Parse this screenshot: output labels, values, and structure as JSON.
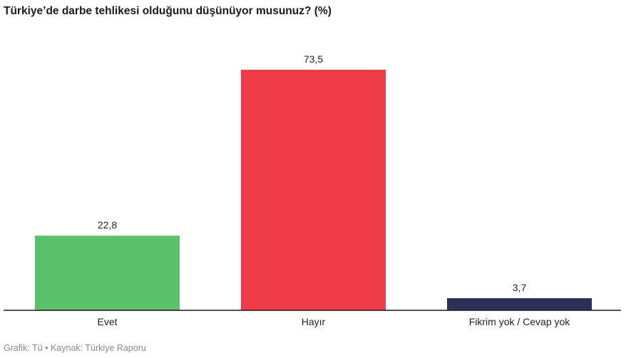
{
  "chart_data": {
    "type": "bar",
    "title": "Türkiye’de darbe tehlikesi olduğunu düşünüyor musunuz? (%)",
    "categories": [
      "Evet",
      "Hayır",
      "Fikrim yok / Cevap yok"
    ],
    "values": [
      22.8,
      73.5,
      3.7
    ],
    "value_labels": [
      "22,8",
      "73,5",
      "3,7"
    ],
    "colors": [
      "#5cc16b",
      "#ef3b48",
      "#2e2e58"
    ],
    "ylim": [
      0,
      73.5
    ],
    "grid": false,
    "legend": "none"
  },
  "footer": {
    "text": "Grafik: Tü • Kaynak: Türkiye Raporu"
  }
}
